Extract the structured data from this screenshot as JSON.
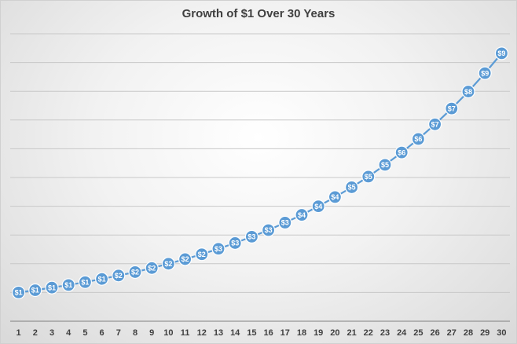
{
  "chart_data": {
    "type": "line",
    "title": "Growth of $1 Over 30 Years",
    "xlabel": "",
    "ylabel": "",
    "grid": true,
    "legend": "none",
    "show_y_tick_labels": false,
    "ylim": [
      0,
      10
    ],
    "series_color": "#5b9bd5",
    "categories": [
      "1",
      "2",
      "3",
      "4",
      "5",
      "6",
      "7",
      "8",
      "9",
      "10",
      "11",
      "12",
      "13",
      "14",
      "15",
      "16",
      "17",
      "18",
      "19",
      "20",
      "21",
      "22",
      "23",
      "24",
      "25",
      "26",
      "27",
      "28",
      "29",
      "30"
    ],
    "values": [
      1.0,
      1.08,
      1.17,
      1.26,
      1.36,
      1.47,
      1.59,
      1.71,
      1.85,
      2.0,
      2.16,
      2.33,
      2.52,
      2.72,
      2.94,
      3.17,
      3.43,
      3.7,
      4.0,
      4.32,
      4.66,
      5.03,
      5.44,
      5.87,
      6.34,
      6.85,
      7.4,
      7.99,
      8.63,
      9.32
    ],
    "data_labels": [
      "$1",
      "$1",
      "$1",
      "$1",
      "$1",
      "$1",
      "$2",
      "$2",
      "$2",
      "$2",
      "$2",
      "$2",
      "$3",
      "$3",
      "$3",
      "$3",
      "$3",
      "$4",
      "$4",
      "$4",
      "$5",
      "$5",
      "$5",
      "$6",
      "$6",
      "$7",
      "$7",
      "$8",
      "$9",
      "$9"
    ]
  }
}
